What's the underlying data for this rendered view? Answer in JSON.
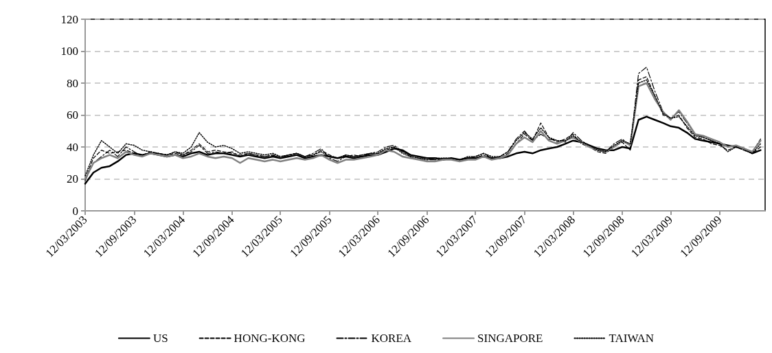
{
  "chart_data": {
    "type": "line",
    "x": [
      "2003-03-12",
      "2003-04-12",
      "2003-05-12",
      "2003-06-12",
      "2003-07-12",
      "2003-08-12",
      "2003-09-12",
      "2003-10-12",
      "2003-11-12",
      "2003-12-12",
      "2004-01-12",
      "2004-02-12",
      "2004-03-12",
      "2004-04-12",
      "2004-05-12",
      "2004-06-12",
      "2004-07-12",
      "2004-08-12",
      "2004-09-12",
      "2004-10-12",
      "2004-11-12",
      "2004-12-12",
      "2005-01-12",
      "2005-02-12",
      "2005-03-12",
      "2005-04-12",
      "2005-05-12",
      "2005-06-12",
      "2005-07-12",
      "2005-08-12",
      "2005-09-12",
      "2005-10-12",
      "2005-11-12",
      "2005-12-12",
      "2006-01-12",
      "2006-02-12",
      "2006-03-12",
      "2006-04-12",
      "2006-05-12",
      "2006-06-12",
      "2006-07-12",
      "2006-08-12",
      "2006-09-12",
      "2006-10-12",
      "2006-11-12",
      "2006-12-12",
      "2007-01-12",
      "2007-02-12",
      "2007-03-12",
      "2007-04-12",
      "2007-05-12",
      "2007-06-12",
      "2007-07-12",
      "2007-08-12",
      "2007-09-12",
      "2007-10-12",
      "2007-11-12",
      "2007-12-12",
      "2008-01-12",
      "2008-02-12",
      "2008-03-12",
      "2008-04-12",
      "2008-05-12",
      "2008-06-12",
      "2008-07-12",
      "2008-08-12",
      "2008-09-12",
      "2008-10-12",
      "2008-11-12",
      "2008-12-12",
      "2009-01-12",
      "2009-02-12",
      "2009-03-12",
      "2009-04-12",
      "2009-05-12",
      "2009-06-12",
      "2009-07-12",
      "2009-08-12",
      "2009-09-12",
      "2009-10-12",
      "2009-11-12",
      "2009-12-12",
      "2010-01-12",
      "2010-02-12"
    ],
    "series": [
      {
        "name": "US",
        "color": "#000000",
        "line_style": "solid",
        "values": [
          17,
          24,
          27,
          28,
          31,
          35,
          36,
          35,
          36,
          35,
          34,
          35,
          34,
          36,
          37,
          35,
          36,
          36,
          35,
          34,
          35,
          34,
          33,
          34,
          33,
          34,
          35,
          33,
          34,
          35,
          34,
          33,
          34,
          33,
          34,
          35,
          35,
          37,
          39,
          38,
          35,
          34,
          33,
          33,
          32,
          33,
          32,
          33,
          33,
          34,
          33,
          33,
          34,
          36,
          37,
          36,
          38,
          39,
          40,
          42,
          44,
          43,
          41,
          39,
          38,
          38,
          40,
          39,
          57,
          59,
          57,
          55,
          53,
          52,
          49,
          45,
          44,
          43,
          42,
          41,
          40,
          39,
          36,
          38
        ]
      },
      {
        "name": "HONG-KONG",
        "color": "#000000",
        "line_style": "dashed",
        "values": [
          20,
          33,
          38,
          36,
          37,
          38,
          36,
          35,
          37,
          36,
          35,
          36,
          35,
          38,
          42,
          37,
          38,
          37,
          36,
          35,
          36,
          35,
          34,
          35,
          34,
          35,
          36,
          34,
          35,
          38,
          35,
          33,
          35,
          34,
          35,
          36,
          36,
          38,
          40,
          37,
          35,
          34,
          33,
          32,
          32,
          33,
          32,
          33,
          34,
          36,
          33,
          33,
          36,
          42,
          48,
          44,
          55,
          46,
          43,
          45,
          48,
          42,
          40,
          37,
          36,
          40,
          43,
          38,
          82,
          84,
          72,
          60,
          58,
          60,
          52,
          46,
          45,
          42,
          41,
          38,
          40,
          38,
          36,
          40
        ]
      },
      {
        "name": "KOREA",
        "color": "#000000",
        "line_style": "dashdot",
        "values": [
          19,
          30,
          34,
          38,
          34,
          40,
          37,
          34,
          36,
          36,
          35,
          37,
          35,
          37,
          41,
          36,
          37,
          36,
          37,
          34,
          36,
          35,
          34,
          35,
          33,
          35,
          36,
          34,
          36,
          39,
          33,
          31,
          34,
          35,
          34,
          36,
          37,
          40,
          41,
          37,
          34,
          33,
          32,
          32,
          33,
          33,
          32,
          33,
          33,
          35,
          33,
          34,
          37,
          45,
          50,
          44,
          48,
          45,
          44,
          43,
          49,
          44,
          41,
          38,
          37,
          42,
          45,
          41,
          86,
          90,
          75,
          62,
          58,
          62,
          55,
          48,
          46,
          44,
          42,
          40,
          41,
          39,
          37,
          45
        ]
      },
      {
        "name": "SINGAPORE",
        "color": "#808080",
        "line_style": "solid",
        "values": [
          20,
          30,
          33,
          35,
          33,
          37,
          35,
          34,
          36,
          35,
          34,
          35,
          33,
          34,
          36,
          34,
          33,
          34,
          33,
          30,
          33,
          32,
          31,
          32,
          31,
          32,
          33,
          32,
          33,
          35,
          32,
          30,
          32,
          32,
          33,
          34,
          35,
          38,
          37,
          34,
          33,
          32,
          31,
          31,
          32,
          32,
          31,
          32,
          32,
          34,
          32,
          33,
          35,
          42,
          46,
          43,
          50,
          44,
          42,
          44,
          46,
          43,
          40,
          38,
          37,
          40,
          44,
          41,
          78,
          80,
          70,
          62,
          57,
          63,
          56,
          48,
          47,
          45,
          43,
          40,
          41,
          39,
          37,
          44
        ]
      },
      {
        "name": "TAIWAN",
        "color": "#000000",
        "line_style": "dotted",
        "values": [
          22,
          35,
          44,
          40,
          36,
          42,
          41,
          38,
          37,
          36,
          35,
          37,
          36,
          40,
          49,
          43,
          40,
          41,
          39,
          36,
          37,
          36,
          35,
          36,
          34,
          35,
          36,
          34,
          35,
          37,
          34,
          33,
          35,
          34,
          35,
          36,
          36,
          39,
          40,
          36,
          34,
          33,
          32,
          33,
          33,
          33,
          32,
          34,
          34,
          36,
          34,
          34,
          37,
          44,
          49,
          45,
          52,
          46,
          44,
          44,
          47,
          43,
          41,
          38,
          37,
          41,
          44,
          42,
          80,
          82,
          72,
          61,
          58,
          59,
          53,
          47,
          46,
          44,
          42,
          37,
          40,
          38,
          36,
          42
        ]
      }
    ],
    "xlim": [
      "2003-03-12",
      "2010-03-01"
    ],
    "xticks": [
      {
        "value": "2003-03-12",
        "label": "12/03/2003"
      },
      {
        "value": "2003-09-12",
        "label": "12/09/2003"
      },
      {
        "value": "2004-03-12",
        "label": "12/03/2004"
      },
      {
        "value": "2004-09-12",
        "label": "12/09/2004"
      },
      {
        "value": "2005-03-12",
        "label": "12/03/2005"
      },
      {
        "value": "2005-09-12",
        "label": "12/09/2005"
      },
      {
        "value": "2006-03-12",
        "label": "12/03/2006"
      },
      {
        "value": "2006-09-12",
        "label": "12/09/2006"
      },
      {
        "value": "2007-03-12",
        "label": "12/03/2007"
      },
      {
        "value": "2007-09-12",
        "label": "12/09/2007"
      },
      {
        "value": "2008-03-12",
        "label": "12/03/2008"
      },
      {
        "value": "2008-09-12",
        "label": "12/09/2008"
      },
      {
        "value": "2009-03-12",
        "label": "12/03/2009"
      },
      {
        "value": "2009-09-12",
        "label": "12/09/2009"
      }
    ],
    "ylim": [
      0,
      120
    ],
    "yticks": [
      0,
      20,
      40,
      60,
      80,
      100,
      120
    ],
    "grid": "y",
    "legend": "bottom",
    "marker": "none"
  }
}
